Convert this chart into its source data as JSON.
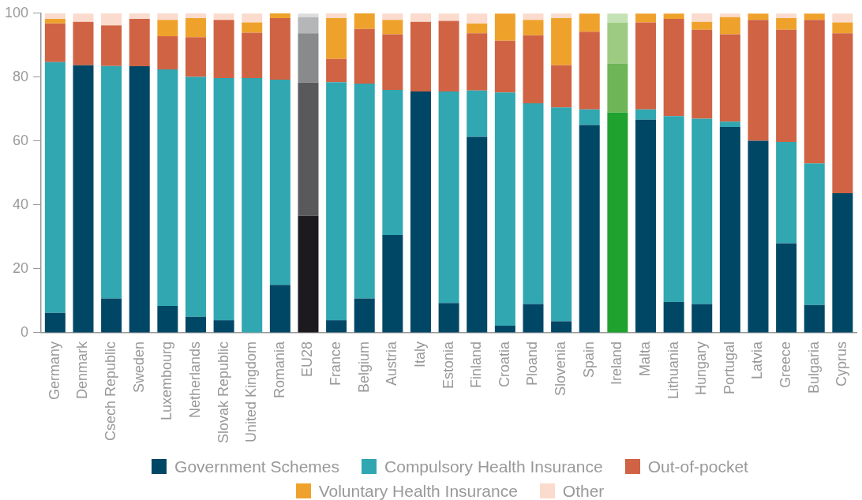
{
  "chart_data": {
    "type": "bar",
    "stacked": true,
    "legend": "bottom",
    "ylim": [
      0,
      100
    ],
    "yticks": [
      0,
      20,
      40,
      60,
      80,
      100
    ],
    "grid": false,
    "categories": [
      "Germany",
      "Denmark",
      "Csech Republic",
      "Sweden",
      "Luxembourg",
      "Netherlands",
      "Slovak Republic",
      "United Kingdom",
      "Romania",
      "EU28",
      "France",
      "Belgium",
      "Austria",
      "Italy",
      "Estonia",
      "Finland",
      "Croatia",
      "Ploand",
      "Slovenia",
      "Spain",
      "Ireland",
      "Malta",
      "Lithuania",
      "Hungary",
      "Portugal",
      "Latvia",
      "Greece",
      "Bulgaria",
      "Cyprus"
    ],
    "series": [
      {
        "name": "Government Schemes",
        "color": "#004766",
        "colors": [
          "#004766",
          "#004766",
          "#004766",
          "#004766",
          "#004766",
          "#004766",
          "#004766",
          "#004766",
          "#004766",
          "#1c1a1f",
          "#004766",
          "#004766",
          "#004766",
          "#004766",
          "#004766",
          "#004766",
          "#004766",
          "#004766",
          "#004766",
          "#004766",
          "#1fa22e",
          "#004766",
          "#004766",
          "#004766",
          "#004766",
          "#004766",
          "#004766",
          "#004766",
          "#004766"
        ],
        "values": [
          6.2,
          83.7,
          10.7,
          83.4,
          8.4,
          5.0,
          3.9,
          0,
          15.0,
          36.6,
          3.9,
          10.7,
          30.6,
          75.5,
          9.3,
          61.3,
          2.2,
          9.0,
          3.6,
          65.0,
          68.9,
          66.7,
          9.6,
          9.0,
          64.4,
          60.1,
          28.0,
          8.7,
          43.7
        ]
      },
      {
        "name": "Compulsory Health Insurance",
        "color": "#30a7b1",
        "colors": [
          "#30a7b1",
          "#30a7b1",
          "#30a7b1",
          "#30a7b1",
          "#30a7b1",
          "#30a7b1",
          "#30a7b1",
          "#30a7b1",
          "#30a7b1",
          "#59595b",
          "#30a7b1",
          "#30a7b1",
          "#30a7b1",
          "#30a7b1",
          "#30a7b1",
          "#30a7b1",
          "#30a7b1",
          "#30a7b1",
          "#30a7b1",
          "#30a7b1",
          "#30a7b1",
          "#30a7b1",
          "#30a7b1",
          "#30a7b1",
          "#30a7b1",
          "#30a7b1",
          "#30a7b1",
          "#30a7b1",
          "#30a7b1"
        ],
        "values": [
          78.5,
          0,
          72.8,
          0,
          74.0,
          75.1,
          75.8,
          79.7,
          64.2,
          41.7,
          74.5,
          67.3,
          45.4,
          0,
          66.2,
          14.5,
          73.0,
          62.8,
          66.9,
          4.9,
          0,
          3.2,
          58.2,
          58.0,
          1.7,
          0,
          31.7,
          44.3,
          0
        ]
      },
      {
        "name": "Out-of-pocket",
        "color": "#d06344",
        "colors": [
          "#d06344",
          "#d06344",
          "#d06344",
          "#d06344",
          "#d06344",
          "#d06344",
          "#d06344",
          "#d06344",
          "#d06344",
          "#898a8c",
          "#d06344",
          "#d06344",
          "#d06344",
          "#d06344",
          "#d06344",
          "#d06344",
          "#d06344",
          "#d06344",
          "#d06344",
          "#d06344",
          "#6db556",
          "#d06344",
          "#d06344",
          "#d06344",
          "#d06344",
          "#d06344",
          "#d06344",
          "#d06344",
          "#d06344"
        ],
        "values": [
          12.1,
          13.6,
          12.7,
          14.8,
          10.4,
          12.4,
          18.2,
          14.2,
          19.3,
          15.4,
          7.3,
          17.1,
          17.4,
          21.8,
          22.1,
          17.9,
          16.2,
          21.3,
          13.2,
          24.3,
          15.4,
          27.2,
          30.4,
          27.8,
          27.3,
          37.8,
          35.1,
          44.9,
          50.0
        ]
      },
      {
        "name": "Voluntary Health Insurance",
        "color": "#efa22b",
        "colors": [
          "#efa22b",
          "#efa22b",
          "#efa22b",
          "#efa22b",
          "#efa22b",
          "#efa22b",
          "#efa22b",
          "#efa22b",
          "#efa22b",
          "#b5b6b7",
          "#efa22b",
          "#efa22b",
          "#efa22b",
          "#efa22b",
          "#efa22b",
          "#efa22b",
          "#efa22b",
          "#efa22b",
          "#efa22b",
          "#efa22b",
          "#9ecb82",
          "#efa22b",
          "#efa22b",
          "#efa22b",
          "#efa22b",
          "#efa22b",
          "#efa22b",
          "#efa22b",
          "#efa22b"
        ],
        "values": [
          1.4,
          0,
          0,
          0,
          5.1,
          6.0,
          0,
          3.2,
          1.5,
          5.1,
          12.8,
          4.9,
          4.5,
          0,
          0,
          3.1,
          8.5,
          4.8,
          14.8,
          5.7,
          12.8,
          2.8,
          1.7,
          2.5,
          5.4,
          2.0,
          3.7,
          2.0,
          3.4
        ]
      },
      {
        "name": "Other",
        "color": "#fadbcd",
        "colors": [
          "#fadbcd",
          "#fadbcd",
          "#fadbcd",
          "#fadbcd",
          "#fadbcd",
          "#fadbcd",
          "#fadbcd",
          "#fadbcd",
          "#fadbcd",
          "#dcdcdc",
          "#fadbcd",
          "#fadbcd",
          "#fadbcd",
          "#fadbcd",
          "#fadbcd",
          "#fadbcd",
          "#fadbcd",
          "#fadbcd",
          "#fadbcd",
          "#fadbcd",
          "#c5e2b5",
          "#fadbcd",
          "#fadbcd",
          "#fadbcd",
          "#fadbcd",
          "#fadbcd",
          "#fadbcd",
          "#fadbcd",
          "#fadbcd"
        ],
        "values": [
          1.8,
          2.6,
          3.8,
          1.8,
          2.1,
          1.5,
          2.0,
          2.8,
          0,
          1.1,
          1.5,
          0,
          2.0,
          2.7,
          2.3,
          3.1,
          0,
          2.0,
          1.4,
          0,
          2.8,
          0,
          0,
          2.7,
          1.1,
          0,
          1.4,
          0,
          2.8
        ]
      }
    ]
  }
}
